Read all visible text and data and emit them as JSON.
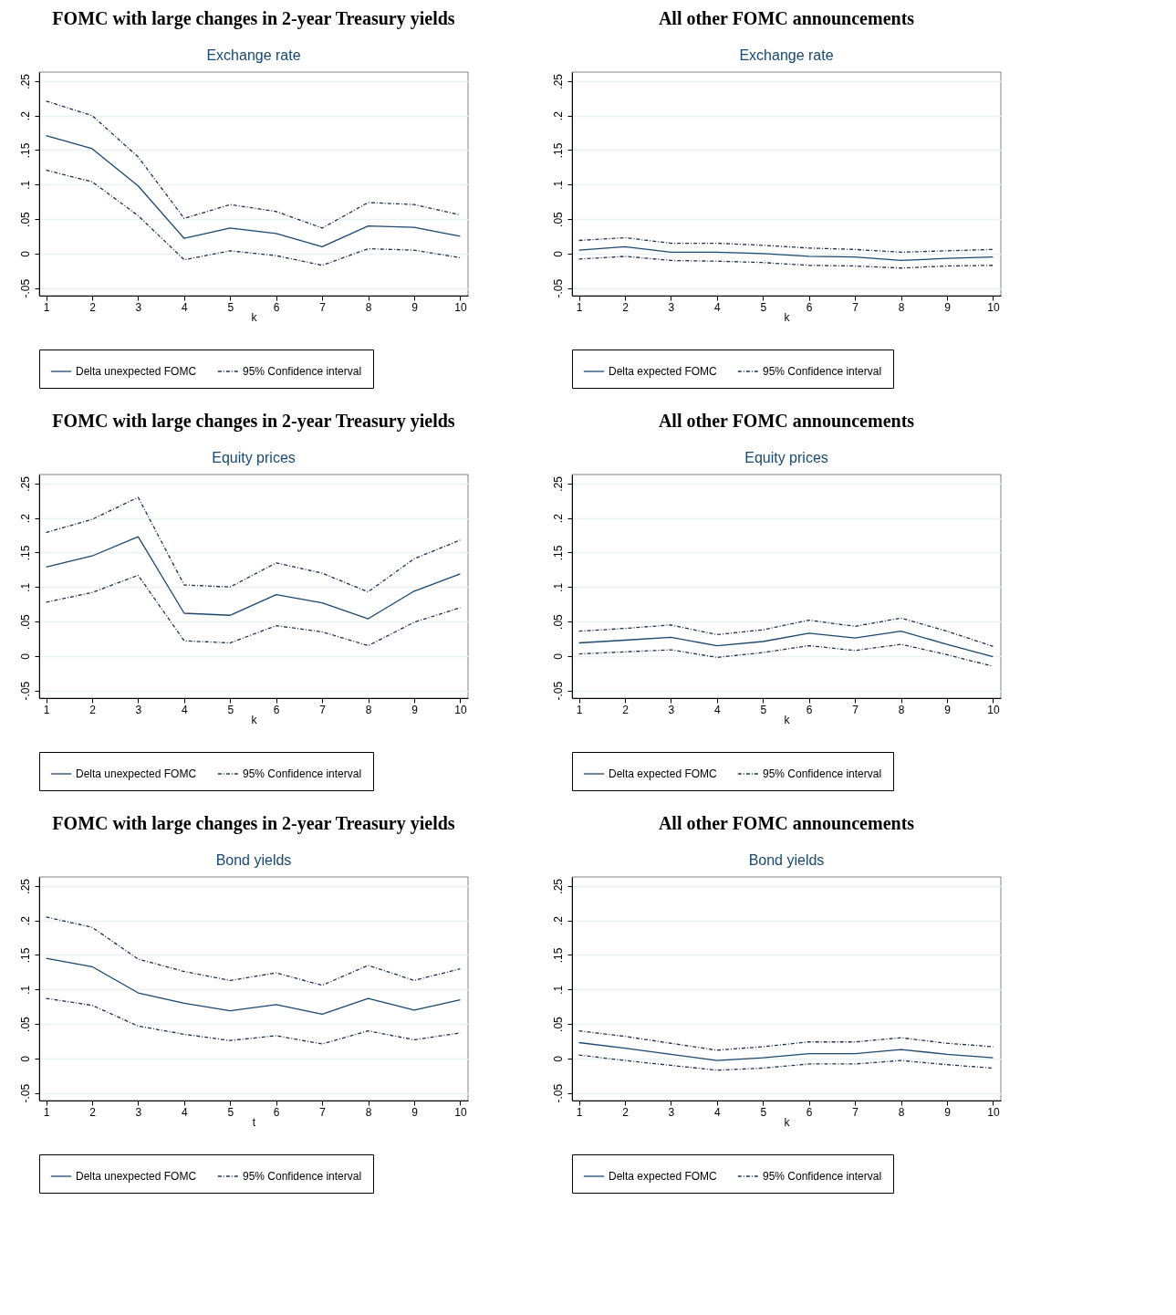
{
  "chart_data": [
    {
      "type": "line",
      "title": "FOMC with large changes in 2-year Treasury yields",
      "subtitle": "Exchange rate",
      "xlabel": "k",
      "x": [
        1,
        2,
        3,
        4,
        5,
        6,
        7,
        8,
        9,
        10
      ],
      "xlim": [
        0.85,
        10.17
      ],
      "xticks": [
        1,
        2,
        3,
        4,
        5,
        6,
        7,
        8,
        9,
        10
      ],
      "ylim": [
        -0.061,
        0.263
      ],
      "yticks": [
        {
          "value": -0.05,
          "label": "-.05"
        },
        {
          "value": 0,
          "label": "0"
        },
        {
          "value": 0.05,
          "label": ".05"
        },
        {
          "value": 0.1,
          "label": ".1"
        },
        {
          "value": 0.15,
          "label": ".15"
        },
        {
          "value": 0.2,
          "label": ".2"
        },
        {
          "value": 0.25,
          "label": ".25"
        }
      ],
      "grid": "y",
      "legend": "bottom",
      "series": [
        {
          "name": "Delta unexpected FOMC",
          "color": "#1a476f",
          "line_style": "solid",
          "values": [
            0.171,
            0.152,
            0.098,
            0.022,
            0.037,
            0.029,
            0.01,
            0.04,
            0.038,
            0.025
          ]
        },
        {
          "name": "95% Confidence interval",
          "color": "#1f2d4f",
          "line_style": "dashed",
          "values": [
            0.221,
            0.2,
            0.14,
            0.051,
            0.071,
            0.061,
            0.037,
            0.074,
            0.071,
            0.056
          ]
        },
        {
          "name": "95% Confidence interval",
          "color": "#1f2d4f",
          "line_style": "dashed",
          "values": [
            0.121,
            0.104,
            0.055,
            -0.009,
            0.004,
            -0.003,
            -0.017,
            0.007,
            0.005,
            -0.006
          ]
        }
      ]
    },
    {
      "type": "line",
      "title": "All other FOMC announcements",
      "subtitle": "Exchange rate",
      "xlabel": "k",
      "x": [
        1,
        2,
        3,
        4,
        5,
        6,
        7,
        8,
        9,
        10
      ],
      "xlim": [
        0.85,
        10.17
      ],
      "xticks": [
        1,
        2,
        3,
        4,
        5,
        6,
        7,
        8,
        9,
        10
      ],
      "ylim": [
        -0.061,
        0.263
      ],
      "yticks": [
        {
          "value": -0.05,
          "label": "-.05"
        },
        {
          "value": 0,
          "label": "0"
        },
        {
          "value": 0.05,
          "label": ".05"
        },
        {
          "value": 0.1,
          "label": ".1"
        },
        {
          "value": 0.15,
          "label": ".15"
        },
        {
          "value": 0.2,
          "label": ".2"
        },
        {
          "value": 0.25,
          "label": ".25"
        }
      ],
      "grid": "y",
      "legend": "bottom",
      "series": [
        {
          "name": "Delta expected FOMC",
          "color": "#1a476f",
          "line_style": "solid",
          "values": [
            0.005,
            0.01,
            0.002,
            0.002,
            0.0,
            -0.004,
            -0.005,
            -0.01,
            -0.007,
            -0.005
          ]
        },
        {
          "name": "95% Confidence interval",
          "color": "#1f2d4f",
          "line_style": "dashed",
          "values": [
            0.019,
            0.023,
            0.015,
            0.015,
            0.012,
            0.008,
            0.006,
            0.002,
            0.004,
            0.006
          ]
        },
        {
          "name": "95% Confidence interval",
          "color": "#1f2d4f",
          "line_style": "dashed",
          "values": [
            -0.008,
            -0.004,
            -0.01,
            -0.011,
            -0.013,
            -0.017,
            -0.018,
            -0.021,
            -0.018,
            -0.017
          ]
        }
      ]
    },
    {
      "type": "line",
      "title": "FOMC with large changes in 2-year Treasury yields",
      "subtitle": "Equity prices",
      "xlabel": "k",
      "x": [
        1,
        2,
        3,
        4,
        5,
        6,
        7,
        8,
        9,
        10
      ],
      "xlim": [
        0.85,
        10.17
      ],
      "xticks": [
        1,
        2,
        3,
        4,
        5,
        6,
        7,
        8,
        9,
        10
      ],
      "ylim": [
        -0.061,
        0.263
      ],
      "yticks": [
        {
          "value": -0.05,
          "label": "-.05"
        },
        {
          "value": 0,
          "label": "0"
        },
        {
          "value": 0.05,
          "label": ".05"
        },
        {
          "value": 0.1,
          "label": ".1"
        },
        {
          "value": 0.15,
          "label": ".15"
        },
        {
          "value": 0.2,
          "label": ".2"
        },
        {
          "value": 0.25,
          "label": ".25"
        }
      ],
      "grid": "y",
      "legend": "bottom",
      "series": [
        {
          "name": "Delta unexpected FOMC",
          "color": "#1a476f",
          "line_style": "solid",
          "values": [
            0.129,
            0.145,
            0.173,
            0.062,
            0.059,
            0.089,
            0.077,
            0.054,
            0.094,
            0.119
          ]
        },
        {
          "name": "95% Confidence interval",
          "color": "#1f2d4f",
          "line_style": "dashed",
          "values": [
            0.179,
            0.198,
            0.23,
            0.103,
            0.1,
            0.135,
            0.12,
            0.093,
            0.141,
            0.168
          ]
        },
        {
          "name": "95% Confidence interval",
          "color": "#1f2d4f",
          "line_style": "dashed",
          "values": [
            0.078,
            0.092,
            0.117,
            0.022,
            0.019,
            0.044,
            0.035,
            0.015,
            0.049,
            0.07
          ]
        }
      ]
    },
    {
      "type": "line",
      "title": "All other FOMC announcements",
      "subtitle": "Equity prices",
      "xlabel": "k",
      "x": [
        1,
        2,
        3,
        4,
        5,
        6,
        7,
        8,
        9,
        10
      ],
      "xlim": [
        0.85,
        10.17
      ],
      "xticks": [
        1,
        2,
        3,
        4,
        5,
        6,
        7,
        8,
        9,
        10
      ],
      "ylim": [
        -0.061,
        0.263
      ],
      "yticks": [
        {
          "value": -0.05,
          "label": "-.05"
        },
        {
          "value": 0,
          "label": "0"
        },
        {
          "value": 0.05,
          "label": ".05"
        },
        {
          "value": 0.1,
          "label": ".1"
        },
        {
          "value": 0.15,
          "label": ".15"
        },
        {
          "value": 0.2,
          "label": ".2"
        },
        {
          "value": 0.25,
          "label": ".25"
        }
      ],
      "grid": "y",
      "legend": "bottom",
      "series": [
        {
          "name": "Delta expected FOMC",
          "color": "#1a476f",
          "line_style": "solid",
          "values": [
            0.019,
            0.023,
            0.027,
            0.015,
            0.021,
            0.033,
            0.026,
            0.036,
            0.017,
            -0.001
          ]
        },
        {
          "name": "95% Confidence interval",
          "color": "#1f2d4f",
          "line_style": "dashed",
          "values": [
            0.036,
            0.04,
            0.045,
            0.031,
            0.038,
            0.052,
            0.043,
            0.055,
            0.036,
            0.014
          ]
        },
        {
          "name": "95% Confidence interval",
          "color": "#1f2d4f",
          "line_style": "dashed",
          "values": [
            0.003,
            0.006,
            0.009,
            -0.002,
            0.005,
            0.015,
            0.008,
            0.017,
            0.002,
            -0.015
          ]
        }
      ]
    },
    {
      "type": "line",
      "title": "FOMC with large changes in 2-year Treasury yields",
      "subtitle": "Bond yields",
      "xlabel": "t",
      "x": [
        1,
        2,
        3,
        4,
        5,
        6,
        7,
        8,
        9,
        10
      ],
      "xlim": [
        0.85,
        10.17
      ],
      "xticks": [
        1,
        2,
        3,
        4,
        5,
        6,
        7,
        8,
        9,
        10
      ],
      "ylim": [
        -0.061,
        0.263
      ],
      "yticks": [
        {
          "value": -0.05,
          "label": "-.05"
        },
        {
          "value": 0,
          "label": "0"
        },
        {
          "value": 0.05,
          "label": ".05"
        },
        {
          "value": 0.1,
          "label": ".1"
        },
        {
          "value": 0.15,
          "label": ".15"
        },
        {
          "value": 0.2,
          "label": ".2"
        },
        {
          "value": 0.25,
          "label": ".25"
        }
      ],
      "grid": "y",
      "legend": "bottom",
      "series": [
        {
          "name": "Delta unexpected FOMC",
          "color": "#1a476f",
          "line_style": "solid",
          "values": [
            0.145,
            0.133,
            0.095,
            0.08,
            0.069,
            0.078,
            0.064,
            0.087,
            0.07,
            0.085
          ]
        },
        {
          "name": "95% Confidence interval",
          "color": "#1f2d4f",
          "line_style": "dashed",
          "values": [
            0.205,
            0.19,
            0.144,
            0.126,
            0.113,
            0.124,
            0.106,
            0.135,
            0.113,
            0.13
          ]
        },
        {
          "name": "95% Confidence interval",
          "color": "#1f2d4f",
          "line_style": "dashed",
          "values": [
            0.087,
            0.077,
            0.047,
            0.035,
            0.026,
            0.033,
            0.021,
            0.04,
            0.027,
            0.037
          ]
        }
      ]
    },
    {
      "type": "line",
      "title": "All other FOMC announcements",
      "subtitle": "Bond yields",
      "xlabel": "k",
      "x": [
        1,
        2,
        3,
        4,
        5,
        6,
        7,
        8,
        9,
        10
      ],
      "xlim": [
        0.85,
        10.17
      ],
      "xticks": [
        1,
        2,
        3,
        4,
        5,
        6,
        7,
        8,
        9,
        10
      ],
      "ylim": [
        -0.061,
        0.263
      ],
      "yticks": [
        {
          "value": -0.05,
          "label": "-.05"
        },
        {
          "value": 0,
          "label": "0"
        },
        {
          "value": 0.05,
          "label": ".05"
        },
        {
          "value": 0.1,
          "label": ".1"
        },
        {
          "value": 0.15,
          "label": ".15"
        },
        {
          "value": 0.2,
          "label": ".2"
        },
        {
          "value": 0.25,
          "label": ".25"
        }
      ],
      "grid": "y",
      "legend": "bottom",
      "series": [
        {
          "name": "Delta expected FOMC",
          "color": "#1a476f",
          "line_style": "solid",
          "values": [
            0.023,
            0.015,
            0.006,
            -0.003,
            0.001,
            0.007,
            0.007,
            0.013,
            0.006,
            0.001
          ]
        },
        {
          "name": "95% Confidence interval",
          "color": "#1f2d4f",
          "line_style": "dashed",
          "values": [
            0.04,
            0.032,
            0.022,
            0.012,
            0.017,
            0.024,
            0.024,
            0.03,
            0.022,
            0.017
          ]
        },
        {
          "name": "95% Confidence interval",
          "color": "#1f2d4f",
          "line_style": "dashed",
          "values": [
            0.005,
            -0.003,
            -0.01,
            -0.017,
            -0.014,
            -0.008,
            -0.008,
            -0.003,
            -0.009,
            -0.014
          ]
        }
      ]
    }
  ]
}
